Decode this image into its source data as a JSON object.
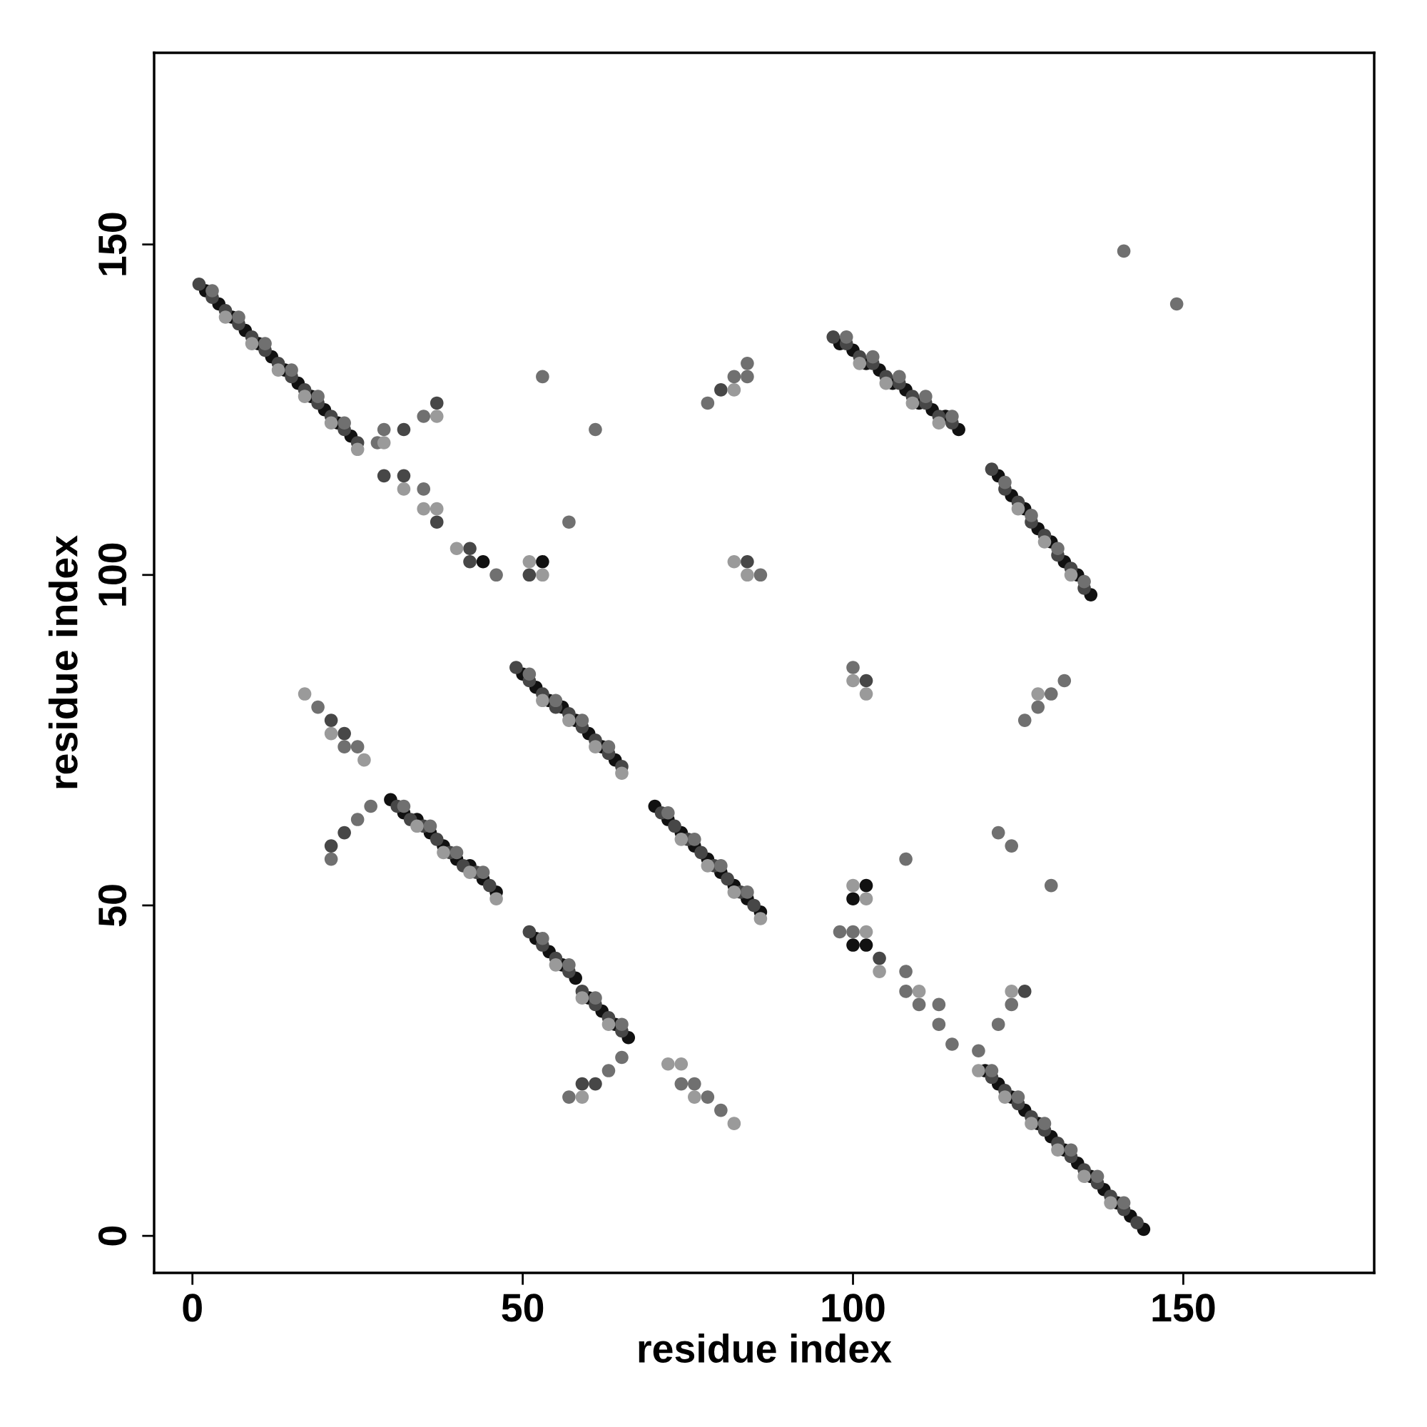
{
  "chart_data": {
    "type": "scatter",
    "xlabel": "residue index",
    "ylabel": "residue index",
    "xlim": [
      -5.8,
      178.9
    ],
    "ylim": [
      -5.6,
      179
    ],
    "xticks": [
      0,
      50,
      100,
      150
    ],
    "yticks": [
      0,
      50,
      100,
      150
    ],
    "grid": false,
    "marker": "circle",
    "series": [
      {
        "color": "#111111",
        "x": [
          2,
          4,
          6,
          8,
          10,
          12,
          14,
          16,
          18,
          20,
          22,
          24,
          98,
          100,
          102,
          104,
          106,
          108,
          110,
          112,
          114,
          116,
          122,
          124,
          126,
          128,
          130,
          132,
          134,
          136,
          50,
          52,
          54,
          56,
          58,
          60,
          62,
          64,
          30,
          32,
          34,
          36,
          38,
          40,
          42,
          44,
          46,
          70,
          72,
          74,
          76,
          78,
          80,
          82,
          84,
          86,
          52,
          54,
          56,
          58,
          60,
          62,
          64,
          66,
          120,
          122,
          124,
          126,
          128,
          130,
          132,
          134,
          136,
          138,
          140,
          142,
          144,
          44,
          53,
          102,
          100,
          102,
          100
        ],
        "values": [
          143,
          141,
          139,
          137,
          135,
          133,
          131,
          129,
          127,
          125,
          123,
          121,
          135,
          134,
          132,
          131,
          129,
          128,
          126,
          125,
          124,
          122,
          115,
          112,
          110,
          107,
          105,
          102,
          100,
          97,
          85,
          83,
          81,
          80,
          78,
          76,
          74,
          72,
          66,
          64,
          63,
          61,
          59,
          57,
          56,
          54,
          52,
          65,
          63,
          61,
          59,
          57,
          55,
          53,
          51,
          49,
          45,
          43,
          41,
          39,
          36,
          34,
          32,
          30,
          25,
          23,
          21,
          19,
          17,
          15,
          13,
          11,
          9,
          7,
          5,
          3,
          1,
          102,
          102,
          53,
          51,
          44,
          44
        ]
      },
      {
        "color": "#474747",
        "x": [
          1,
          3,
          5,
          7,
          9,
          11,
          13,
          15,
          17,
          19,
          21,
          23,
          25,
          97,
          99,
          101,
          103,
          105,
          107,
          109,
          111,
          113,
          115,
          121,
          123,
          125,
          127,
          129,
          131,
          133,
          135,
          49,
          51,
          53,
          55,
          57,
          59,
          61,
          63,
          65,
          31,
          33,
          35,
          37,
          39,
          41,
          43,
          45,
          71,
          73,
          75,
          77,
          79,
          81,
          83,
          85,
          51,
          53,
          55,
          57,
          59,
          61,
          63,
          65,
          121,
          123,
          125,
          127,
          129,
          131,
          133,
          135,
          137,
          139,
          141,
          143,
          21,
          23,
          21,
          23,
          32,
          29,
          32,
          37,
          42,
          42,
          37,
          51,
          80,
          84,
          102,
          104,
          126,
          59,
          61
        ],
        "values": [
          144,
          142,
          140,
          138,
          136,
          134,
          132,
          130,
          128,
          126,
          124,
          122,
          120,
          136,
          135,
          133,
          132,
          130,
          129,
          127,
          126,
          124,
          123,
          116,
          113,
          111,
          108,
          106,
          103,
          101,
          98,
          86,
          84,
          82,
          80,
          79,
          77,
          75,
          73,
          71,
          65,
          63,
          62,
          60,
          58,
          56,
          55,
          53,
          64,
          62,
          60,
          58,
          56,
          54,
          52,
          50,
          46,
          44,
          42,
          40,
          37,
          35,
          33,
          31,
          24,
          22,
          20,
          18,
          16,
          14,
          12,
          10,
          8,
          6,
          4,
          2,
          78,
          76,
          59,
          61,
          115,
          115,
          122,
          126,
          104,
          102,
          108,
          100,
          128,
          102,
          84,
          42,
          37,
          23,
          23
        ]
      },
      {
        "color": "#707070",
        "x": [
          3,
          7,
          11,
          15,
          19,
          23,
          99,
          103,
          107,
          111,
          115,
          123,
          127,
          131,
          135,
          51,
          55,
          59,
          63,
          32,
          36,
          40,
          44,
          72,
          76,
          80,
          84,
          53,
          57,
          61,
          65,
          121,
          125,
          129,
          133,
          137,
          141,
          19,
          23,
          25,
          21,
          25,
          27,
          28,
          29,
          35,
          35,
          46,
          53,
          57,
          61,
          57,
          63,
          65,
          74,
          76,
          78,
          80,
          78,
          82,
          84,
          84,
          86,
          100,
          100,
          98,
          108,
          108,
          110,
          113,
          113,
          115,
          119,
          122,
          124,
          108,
          122,
          124,
          130,
          126,
          128,
          130,
          132,
          141,
          149
        ],
        "values": [
          143,
          139,
          135,
          131,
          127,
          123,
          136,
          133,
          130,
          127,
          124,
          114,
          109,
          104,
          99,
          85,
          81,
          78,
          74,
          65,
          62,
          58,
          55,
          64,
          60,
          56,
          52,
          45,
          41,
          36,
          32,
          25,
          21,
          17,
          13,
          9,
          5,
          80,
          74,
          74,
          57,
          63,
          65,
          120,
          122,
          113,
          124,
          100,
          130,
          108,
          122,
          21,
          25,
          27,
          23,
          23,
          21,
          19,
          126,
          130,
          130,
          132,
          100,
          86,
          46,
          46,
          40,
          37,
          35,
          35,
          32,
          29,
          28,
          32,
          35,
          57,
          61,
          59,
          53,
          78,
          80,
          82,
          84,
          149,
          141
        ]
      },
      {
        "color": "#9a9a9a",
        "x": [
          5,
          9,
          13,
          17,
          21,
          25,
          101,
          105,
          109,
          113,
          125,
          129,
          133,
          53,
          57,
          61,
          65,
          34,
          38,
          42,
          46,
          74,
          78,
          82,
          86,
          55,
          59,
          63,
          123,
          127,
          131,
          135,
          139,
          17,
          21,
          26,
          29,
          32,
          35,
          37,
          37,
          40,
          51,
          53,
          59,
          72,
          74,
          76,
          82,
          82,
          84,
          82,
          100,
          102,
          100,
          102,
          102,
          104,
          110,
          119,
          124,
          128
        ],
        "values": [
          139,
          135,
          131,
          127,
          123,
          119,
          132,
          129,
          126,
          123,
          110,
          105,
          100,
          81,
          78,
          74,
          70,
          62,
          58,
          55,
          51,
          60,
          56,
          52,
          48,
          41,
          36,
          32,
          21,
          17,
          13,
          9,
          5,
          82,
          76,
          72,
          120,
          113,
          110,
          110,
          124,
          104,
          102,
          100,
          21,
          26,
          26,
          21,
          17,
          102,
          100,
          128,
          84,
          82,
          53,
          51,
          46,
          40,
          37,
          25,
          37,
          82
        ]
      }
    ]
  }
}
